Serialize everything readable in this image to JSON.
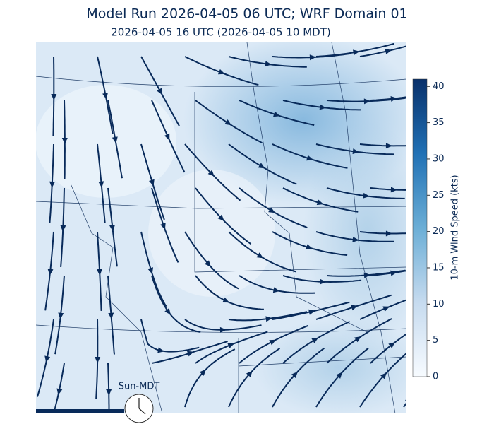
{
  "title": "Model Run 2026-04-05 06 UTC; WRF Domain 01",
  "subtitle": "2026-04-05 16 UTC  (2026-04-05 10 MDT)",
  "colorbar": {
    "label": "10-m Wind Speed (kts)",
    "lim": [
      0,
      41
    ],
    "ticks": [
      0,
      5,
      10,
      15,
      20,
      25,
      30,
      35,
      40
    ],
    "colors": [
      "#f7fbff",
      "#c6dbef",
      "#6baed6",
      "#2171b5",
      "#08306b"
    ]
  },
  "clock_label": "Sun-MDT"
}
